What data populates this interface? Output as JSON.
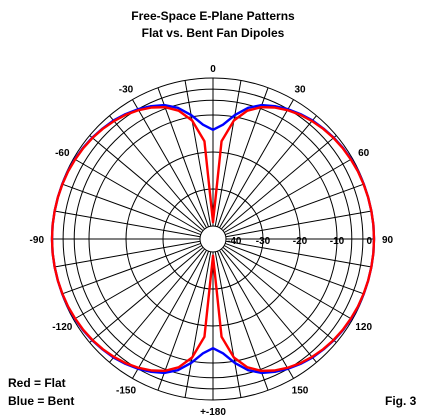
{
  "chart_data": {
    "type": "polar-line",
    "title": "Free-Space E-Plane Patterns",
    "subtitle": "Flat vs. Bent Fan Dipoles",
    "figure_label": "Fig. 3",
    "angle_labels": [
      {
        "deg": 0,
        "text": "0"
      },
      {
        "deg": 30,
        "text": "30"
      },
      {
        "deg": 60,
        "text": "60"
      },
      {
        "deg": 90,
        "text": "90"
      },
      {
        "deg": 120,
        "text": "120"
      },
      {
        "deg": 150,
        "text": "150"
      },
      {
        "deg": 180,
        "text": "+-180"
      },
      {
        "deg": -150,
        "text": "-150"
      },
      {
        "deg": -120,
        "text": "-120"
      },
      {
        "deg": -90,
        "text": "-90"
      },
      {
        "deg": -60,
        "text": "-60"
      },
      {
        "deg": -30,
        "text": "-30"
      }
    ],
    "radial_labels": [
      {
        "db": 0,
        "text": "0"
      },
      {
        "db": -10,
        "text": "-10"
      },
      {
        "db": -20,
        "text": "-20"
      },
      {
        "db": -30,
        "text": "-30"
      },
      {
        "db": -40,
        "text": "-40"
      }
    ],
    "radial_range_db": [
      -40,
      0
    ],
    "series": [
      {
        "name": "Flat",
        "legend_text": "Red = Flat",
        "color": "#ff0000",
        "angles_deg": [
          0,
          5,
          10,
          15,
          20,
          25,
          30,
          35,
          40,
          45,
          50,
          55,
          60,
          65,
          70,
          75,
          80,
          85,
          90
        ],
        "gain_db": [
          -39,
          -17,
          -11,
          -7.6,
          -5.6,
          -4.3,
          -3.3,
          -2.5,
          -1.9,
          -1.4,
          -1.0,
          -0.7,
          -0.5,
          -0.3,
          -0.2,
          -0.1,
          -0.05,
          0,
          0
        ]
      },
      {
        "name": "Bent",
        "legend_text": "Blue = Bent",
        "color": "#0000ff",
        "angles_deg": [
          0,
          5,
          10,
          15,
          20,
          25,
          30,
          35,
          40,
          45,
          50,
          55,
          60,
          65,
          70,
          75,
          80,
          85,
          90
        ],
        "gain_db": [
          -14,
          -12.5,
          -9.5,
          -6.8,
          -5.0,
          -3.9,
          -3.0,
          -2.3,
          -1.7,
          -1.3,
          -0.9,
          -0.6,
          -0.4,
          -0.25,
          -0.15,
          -0.1,
          -0.05,
          0,
          0
        ]
      }
    ],
    "symmetry": "mirrored left-right and top-bottom",
    "background": "#ffffff",
    "grid": true
  }
}
